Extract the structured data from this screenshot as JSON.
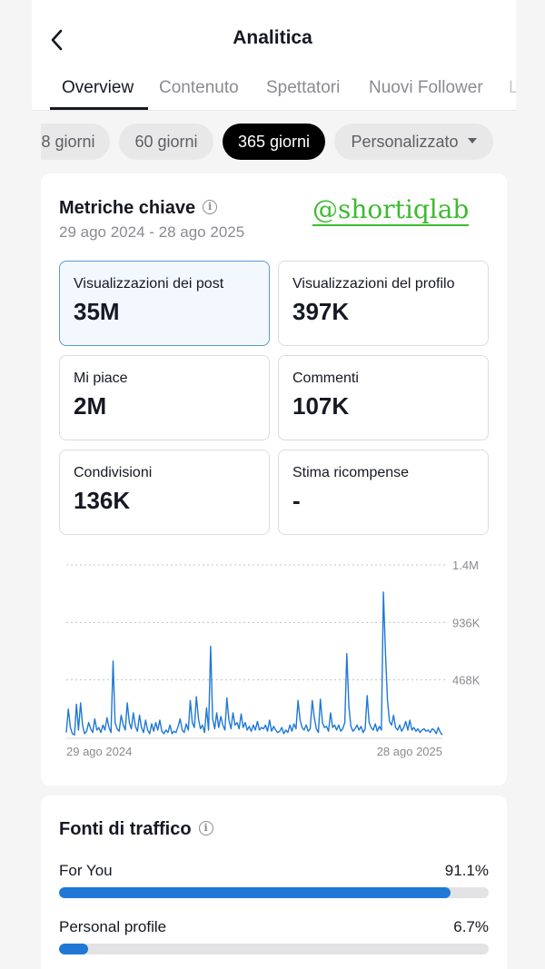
{
  "header": {
    "title": "Analitica"
  },
  "tabs": [
    {
      "label": "Overview",
      "active": true
    },
    {
      "label": "Contenuto",
      "active": false
    },
    {
      "label": "Spettatori",
      "active": false
    },
    {
      "label": "Nuovi Follower",
      "active": false
    },
    {
      "label": "L",
      "active": false
    }
  ],
  "periods": [
    {
      "label": "8 giorni",
      "active": false
    },
    {
      "label": "60 giorni",
      "active": false
    },
    {
      "label": "365 giorni",
      "active": true
    },
    {
      "label": "Personalizzato",
      "active": false
    }
  ],
  "metrics_card": {
    "title": "Metriche chiave",
    "date_range": "29 ago 2024 - 28 ago 2025",
    "watermark": "@shortiqlab",
    "metrics": [
      {
        "label": "Visualizzazioni dei post",
        "value": "35M",
        "selected": true
      },
      {
        "label": "Visualizzazioni del profilo",
        "value": "397K",
        "selected": false
      },
      {
        "label": "Mi piace",
        "value": "2M",
        "selected": false
      },
      {
        "label": "Commenti",
        "value": "107K",
        "selected": false
      },
      {
        "label": "Condivisioni",
        "value": "136K",
        "selected": false
      },
      {
        "label": "Stima ricompense",
        "value": "-",
        "selected": false
      }
    ]
  },
  "chart_data": {
    "type": "line",
    "x_start_label": "29 ago 2024",
    "x_end_label": "28 ago 2025",
    "y_tick_labels": [
      "1.4M",
      "936K",
      "468K"
    ],
    "ylim": [
      0,
      1400000
    ],
    "grid": true,
    "color": "#1f78d6",
    "values": [
      40000,
      230000,
      80000,
      30000,
      20000,
      270000,
      60000,
      280000,
      100000,
      30000,
      50000,
      120000,
      70000,
      40000,
      150000,
      60000,
      80000,
      40000,
      100000,
      60000,
      160000,
      80000,
      40000,
      620000,
      120000,
      70000,
      50000,
      180000,
      100000,
      60000,
      280000,
      120000,
      70000,
      200000,
      90000,
      50000,
      180000,
      80000,
      40000,
      140000,
      60000,
      30000,
      110000,
      50000,
      120000,
      60000,
      140000,
      50000,
      30000,
      60000,
      40000,
      100000,
      30000,
      50000,
      40000,
      90000,
      150000,
      60000,
      40000,
      110000,
      60000,
      300000,
      120000,
      80000,
      330000,
      150000,
      70000,
      100000,
      40000,
      240000,
      60000,
      740000,
      150000,
      70000,
      200000,
      80000,
      170000,
      100000,
      60000,
      320000,
      140000,
      70000,
      200000,
      100000,
      120000,
      70000,
      190000,
      80000,
      120000,
      60000,
      90000,
      50000,
      100000,
      60000,
      130000,
      60000,
      80000,
      70000,
      100000,
      50000,
      140000,
      50000,
      90000,
      60000,
      40000,
      50000,
      80000,
      30000,
      60000,
      40000,
      100000,
      50000,
      110000,
      70000,
      300000,
      140000,
      80000,
      60000,
      100000,
      50000,
      70000,
      300000,
      160000,
      70000,
      40000,
      310000,
      120000,
      80000,
      90000,
      50000,
      200000,
      80000,
      100000,
      60000,
      100000,
      50000,
      70000,
      120000,
      680000,
      250000,
      90000,
      50000,
      70000,
      100000,
      60000,
      90000,
      40000,
      70000,
      340000,
      120000,
      80000,
      60000,
      110000,
      50000,
      90000,
      60000,
      1180000,
      700000,
      300000,
      130000,
      100000,
      180000,
      80000,
      60000,
      100000,
      50000,
      80000,
      130000,
      60000,
      140000,
      60000,
      80000,
      50000,
      70000,
      40000,
      60000,
      70000,
      50000,
      60000,
      40000,
      70000,
      60000,
      30000,
      80000,
      40000,
      20000
    ]
  },
  "traffic_card": {
    "title": "Fonti di traffico",
    "rows": [
      {
        "label": "For You",
        "value": "91.1%",
        "fraction": 0.911
      },
      {
        "label": "Personal profile",
        "value": "6.7%",
        "fraction": 0.067
      }
    ]
  }
}
